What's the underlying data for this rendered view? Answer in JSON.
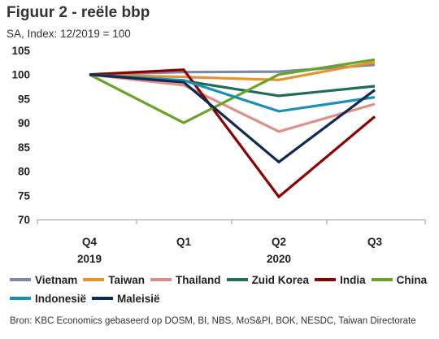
{
  "title": "Figuur 2 - reële bbp",
  "subtitle": "SA, Index: 12/2019 = 100",
  "source": "Bron: KBC Economics gebaseerd op DOSM, BI, NBS, MoS&PI, BOK, NESDC, Taiwan Directorate",
  "chart_data": {
    "type": "line",
    "title": "Figuur 2 - reële bbp",
    "subtitle": "SA, Index: 12/2019 = 100",
    "x_tick_labels": [
      "Q4",
      "Q1",
      "Q2",
      "Q3"
    ],
    "x_group_labels": [
      {
        "label": "2019",
        "under": 0
      },
      {
        "label": "2020",
        "under": 2
      }
    ],
    "ylim": [
      70,
      105
    ],
    "yticks": [
      70,
      75,
      80,
      85,
      90,
      95,
      100,
      105
    ],
    "grid": false,
    "legend_position": "bottom",
    "legend_rows": [
      [
        0,
        1,
        2,
        3,
        4,
        5
      ],
      [
        6,
        7
      ]
    ],
    "series": [
      {
        "name": "Vietnam",
        "color": "#7a8aa8",
        "values": [
          100,
          100.5,
          100.6,
          102.0
        ]
      },
      {
        "name": "Taiwan",
        "color": "#e8922e",
        "values": [
          100,
          99.5,
          98.9,
          102.6
        ]
      },
      {
        "name": "Thailand",
        "color": "#e08f88",
        "values": [
          100,
          97.8,
          88.2,
          93.9
        ]
      },
      {
        "name": "Zuid Korea",
        "color": "#1f6d59",
        "values": [
          100,
          98.7,
          95.6,
          97.6
        ]
      },
      {
        "name": "India",
        "color": "#8b0000",
        "values": [
          100,
          101.0,
          74.7,
          91.3
        ]
      },
      {
        "name": "China",
        "color": "#6aa32a",
        "values": [
          100,
          90.0,
          100.0,
          103.1
        ]
      },
      {
        "name": "Indonesië",
        "color": "#1a8fb8",
        "values": [
          100,
          98.8,
          92.4,
          95.3
        ]
      },
      {
        "name": "Maleisië",
        "color": "#0d2b55",
        "values": [
          100,
          98.4,
          81.9,
          96.8
        ]
      }
    ]
  }
}
